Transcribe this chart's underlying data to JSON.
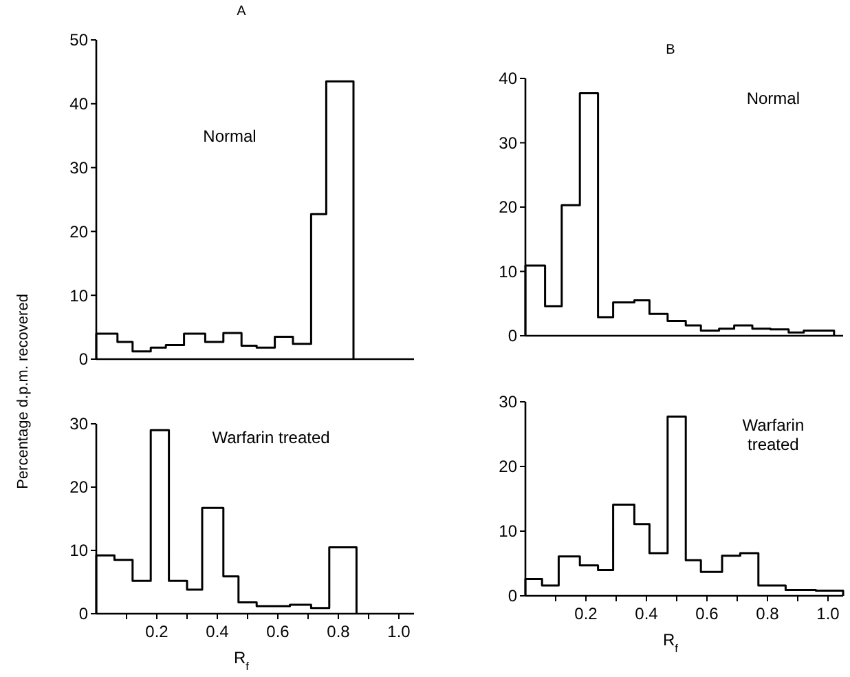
{
  "chart_data": [
    {
      "type": "histogram",
      "title": "A",
      "ylabel": "Percentage d.p.m. recovered",
      "annotations": [
        "Normal"
      ],
      "bins": [
        0,
        0.07,
        0.12,
        0.18,
        0.23,
        0.29,
        0.36,
        0.42,
        0.48,
        0.53,
        0.59,
        0.65,
        0.71,
        0.76,
        0.85
      ],
      "values": [
        4,
        2.7,
        1.2,
        1.8,
        2.2,
        4,
        2.7,
        4.1,
        2.1,
        1.8,
        3.5,
        2.4,
        22.7,
        43.5
      ],
      "color": "#000000",
      "xlim": [
        0,
        1.05
      ],
      "ylim": [
        0,
        50
      ],
      "yticks": [
        0,
        10,
        20,
        30,
        40,
        50
      ],
      "tick_labels": "y"
    },
    {
      "type": "histogram",
      "title": "B",
      "annotations": [
        "Normal"
      ],
      "bins": [
        0,
        0.065,
        0.12,
        0.18,
        0.24,
        0.29,
        0.36,
        0.41,
        0.47,
        0.53,
        0.58,
        0.64,
        0.69,
        0.75,
        0.81,
        0.87,
        0.92,
        1.02
      ],
      "values": [
        10.9,
        4.6,
        20.3,
        37.7,
        2.9,
        5.2,
        5.5,
        3.4,
        2.3,
        1.6,
        0.8,
        1.1,
        1.6,
        1.1,
        1,
        0.5,
        0.8
      ],
      "color": "#000000",
      "xlim": [
        0,
        1.05
      ],
      "ylim": [
        0,
        40
      ],
      "yticks": [
        0,
        10,
        20,
        30,
        40
      ],
      "tick_labels": "y"
    },
    {
      "type": "histogram",
      "xlabel": "R$_{f}$",
      "annotations": [
        "Warfarin treated"
      ],
      "bins": [
        0,
        0.06,
        0.12,
        0.18,
        0.24,
        0.3,
        0.35,
        0.42,
        0.47,
        0.53,
        0.64,
        0.71,
        0.77,
        0.86
      ],
      "values": [
        9.2,
        8.5,
        5.2,
        29,
        5.2,
        3.8,
        16.7,
        5.9,
        1.8,
        1.2,
        1.4,
        0.9,
        10.5
      ],
      "color": "#000000",
      "xlim": [
        0,
        1.05
      ],
      "ylim": [
        0,
        30
      ],
      "yticks": [
        0,
        10,
        20,
        30
      ],
      "xticks": [
        {
          "value": 0.1,
          "label": null
        },
        0.2,
        {
          "value": 0.3,
          "label": null
        },
        0.4,
        {
          "value": 0.5,
          "label": null
        },
        0.6,
        {
          "value": 0.7,
          "label": null
        },
        0.8,
        {
          "value": 0.9,
          "label": null
        },
        {
          "value": 1,
          "label": "1.0"
        }
      ]
    },
    {
      "type": "histogram",
      "xlabel": "R$_{f}$",
      "annotations": [
        "Warfarin treated"
      ],
      "bins": [
        0,
        0.055,
        0.11,
        0.18,
        0.24,
        0.29,
        0.36,
        0.41,
        0.47,
        0.53,
        0.58,
        0.65,
        0.71,
        0.77,
        0.86,
        0.96,
        1.05
      ],
      "values": [
        2.6,
        1.6,
        6.1,
        4.7,
        4,
        14.1,
        11.1,
        6.6,
        27.7,
        5.5,
        3.7,
        6.2,
        6.6,
        1.6,
        0.9,
        0.8
      ],
      "color": "#000000",
      "xlim": [
        0,
        1.05
      ],
      "ylim": [
        0,
        30
      ],
      "yticks": [
        0,
        10,
        20,
        30
      ],
      "xticks": [
        {
          "value": 0.1,
          "label": null
        },
        0.2,
        {
          "value": 0.3,
          "label": null
        },
        0.4,
        {
          "value": 0.5,
          "label": null
        },
        0.6,
        {
          "value": 0.7,
          "label": null
        },
        0.8,
        {
          "value": 0.9,
          "label": null
        },
        {
          "value": 1,
          "label": "1.0"
        }
      ]
    }
  ]
}
